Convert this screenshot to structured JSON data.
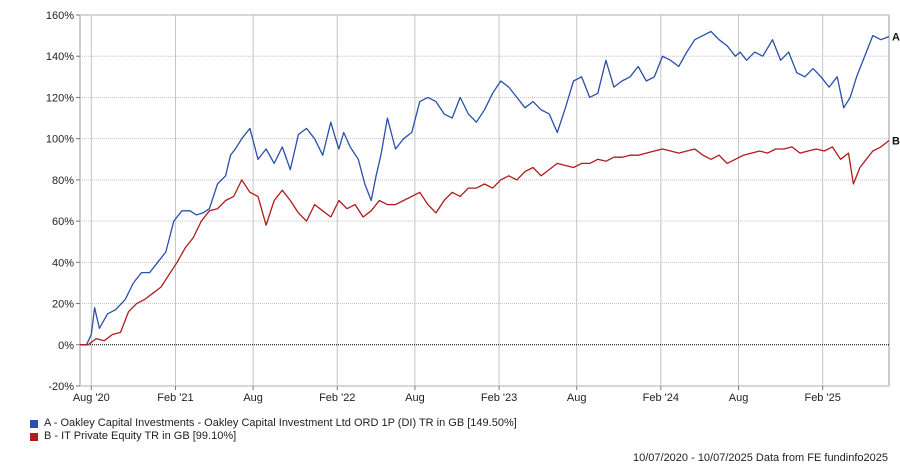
{
  "chart_data": {
    "type": "line",
    "y_tick_labels": [
      "160%",
      "140%",
      "120%",
      "100%",
      "80%",
      "60%",
      "40%",
      "20%",
      "0%",
      "-20%"
    ],
    "y_ticks": [
      160,
      140,
      120,
      100,
      80,
      60,
      40,
      20,
      0,
      -20
    ],
    "ylim": [
      -20,
      160
    ],
    "x_tick_labels": [
      "Aug '20",
      "Feb '21",
      "Aug",
      "Feb '22",
      "Aug",
      "Feb '23",
      "Aug",
      "Feb '24",
      "Aug",
      "Feb '25"
    ],
    "x_ticks": [
      0.07,
      0.59,
      1.07,
      1.59,
      2.07,
      2.59,
      3.07,
      3.59,
      4.07,
      4.59
    ],
    "xlim": [
      0,
      5
    ],
    "x_unit": "years since 10/07/2020",
    "grid": true,
    "zero_line": true,
    "series": [
      {
        "name": "A - Oakley Capital Investments - Oakley Capital Investment Ltd ORD 1P (DI) TR in GB [149.50%]",
        "end_label": "A",
        "color": "#2a50a8",
        "x": [
          0,
          0.04,
          0.07,
          0.09,
          0.12,
          0.17,
          0.22,
          0.28,
          0.33,
          0.38,
          0.43,
          0.48,
          0.53,
          0.58,
          0.63,
          0.68,
          0.72,
          0.76,
          0.8,
          0.85,
          0.9,
          0.93,
          0.96,
          1.0,
          1.05,
          1.1,
          1.15,
          1.2,
          1.25,
          1.3,
          1.35,
          1.4,
          1.45,
          1.5,
          1.55,
          1.58,
          1.6,
          1.63,
          1.67,
          1.72,
          1.76,
          1.8,
          1.83,
          1.86,
          1.9,
          1.95,
          2.0,
          2.05,
          2.1,
          2.15,
          2.2,
          2.25,
          2.3,
          2.35,
          2.4,
          2.45,
          2.5,
          2.55,
          2.6,
          2.65,
          2.7,
          2.75,
          2.8,
          2.85,
          2.9,
          2.95,
          3.0,
          3.05,
          3.1,
          3.15,
          3.2,
          3.25,
          3.3,
          3.35,
          3.4,
          3.45,
          3.5,
          3.55,
          3.6,
          3.65,
          3.7,
          3.75,
          3.8,
          3.85,
          3.9,
          3.95,
          4.0,
          4.05,
          4.08,
          4.12,
          4.17,
          4.22,
          4.28,
          4.33,
          4.38,
          4.43,
          4.48,
          4.53,
          4.58,
          4.63,
          4.68,
          4.72,
          4.76,
          4.8,
          4.85,
          4.9,
          4.95,
          5.0
        ],
        "values": [
          0,
          0,
          5,
          18,
          8,
          15,
          17,
          22,
          30,
          35,
          35,
          40,
          45,
          60,
          65,
          65,
          63,
          64,
          66,
          78,
          82,
          92,
          95,
          100,
          105,
          90,
          95,
          88,
          96,
          85,
          102,
          105,
          100,
          92,
          108,
          100,
          95,
          103,
          96,
          90,
          78,
          70,
          82,
          92,
          110,
          95,
          100,
          103,
          118,
          120,
          118,
          112,
          110,
          120,
          112,
          108,
          114,
          122,
          128,
          125,
          120,
          115,
          118,
          114,
          112,
          103,
          115,
          128,
          130,
          120,
          122,
          138,
          125,
          128,
          130,
          135,
          128,
          130,
          140,
          138,
          135,
          142,
          148,
          150,
          152,
          148,
          145,
          140,
          142,
          138,
          142,
          140,
          148,
          138,
          142,
          132,
          130,
          134,
          130,
          125,
          130,
          115,
          120,
          130,
          140,
          150,
          148,
          149.5
        ]
      },
      {
        "name": "B - IT Private Equity TR in GB [99.10%]",
        "end_label": "B",
        "color": "#b01b1b",
        "x": [
          0,
          0.05,
          0.1,
          0.15,
          0.2,
          0.25,
          0.3,
          0.35,
          0.4,
          0.45,
          0.5,
          0.55,
          0.6,
          0.65,
          0.7,
          0.75,
          0.8,
          0.85,
          0.9,
          0.95,
          1.0,
          1.05,
          1.1,
          1.15,
          1.2,
          1.25,
          1.3,
          1.35,
          1.4,
          1.45,
          1.5,
          1.55,
          1.6,
          1.65,
          1.7,
          1.75,
          1.8,
          1.85,
          1.9,
          1.95,
          2.0,
          2.05,
          2.1,
          2.15,
          2.2,
          2.25,
          2.3,
          2.35,
          2.4,
          2.45,
          2.5,
          2.55,
          2.6,
          2.65,
          2.7,
          2.75,
          2.8,
          2.85,
          2.9,
          2.95,
          3.0,
          3.05,
          3.1,
          3.15,
          3.2,
          3.25,
          3.3,
          3.35,
          3.4,
          3.45,
          3.5,
          3.55,
          3.6,
          3.65,
          3.7,
          3.75,
          3.8,
          3.85,
          3.9,
          3.95,
          4.0,
          4.05,
          4.1,
          4.15,
          4.2,
          4.25,
          4.3,
          4.35,
          4.4,
          4.45,
          4.5,
          4.55,
          4.6,
          4.65,
          4.7,
          4.75,
          4.78,
          4.82,
          4.86,
          4.9,
          4.95,
          5.0
        ],
        "values": [
          0,
          0,
          3,
          2,
          5,
          6,
          16,
          20,
          22,
          25,
          28,
          34,
          40,
          47,
          52,
          60,
          65,
          66,
          70,
          72,
          80,
          74,
          72,
          58,
          70,
          75,
          70,
          64,
          60,
          68,
          65,
          62,
          70,
          66,
          68,
          62,
          65,
          70,
          68,
          68,
          70,
          72,
          74,
          68,
          64,
          70,
          74,
          72,
          76,
          76,
          78,
          76,
          80,
          82,
          80,
          84,
          86,
          82,
          85,
          88,
          87,
          86,
          88,
          88,
          90,
          89,
          91,
          91,
          92,
          92,
          93,
          94,
          95,
          94,
          93,
          94,
          95,
          92,
          90,
          92,
          88,
          90,
          92,
          93,
          94,
          93,
          95,
          95,
          96,
          93,
          94,
          95,
          94,
          96,
          90,
          93,
          78,
          86,
          90,
          94,
          96,
          99.1
        ]
      }
    ]
  },
  "footer_text": "10/07/2020 - 10/07/2025 Data from FE fundinfo2025"
}
